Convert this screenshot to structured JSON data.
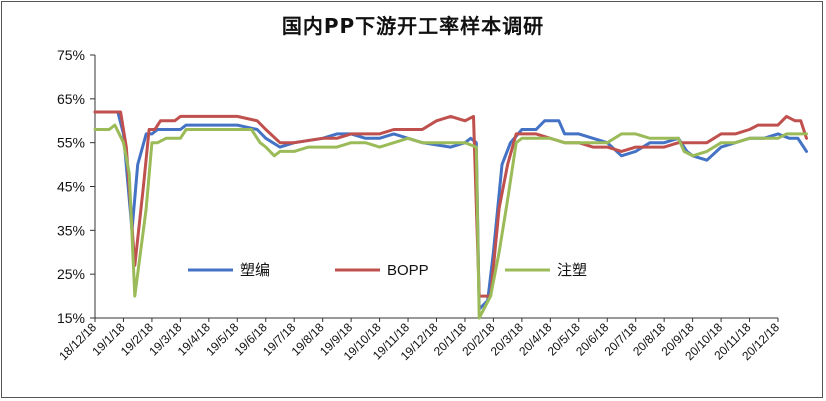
{
  "chart_data": {
    "type": "line",
    "title": "国内PP下游开工率样本调研",
    "ylim": [
      15,
      75
    ],
    "y_ticks": [
      "15%",
      "25%",
      "35%",
      "45%",
      "55%",
      "65%",
      "75%"
    ],
    "x_ticks": [
      "18/12/18",
      "19/1/18",
      "19/2/18",
      "19/3/18",
      "19/4/18",
      "19/5/18",
      "19/6/18",
      "19/7/18",
      "19/8/18",
      "19/9/18",
      "19/10/18",
      "19/11/18",
      "19/12/18",
      "20/1/18",
      "20/2/18",
      "20/3/18",
      "20/4/18",
      "20/5/18",
      "20/6/18",
      "20/7/18",
      "20/8/18",
      "20/9/18",
      "20/10/18",
      "20/11/18",
      "20/12/18"
    ],
    "grid": false,
    "legend_position": "bottom-center",
    "series": [
      {
        "name": "塑编",
        "color": "#4472C4",
        "points": [
          [
            0,
            62
          ],
          [
            0.8,
            62
          ],
          [
            1.0,
            57
          ],
          [
            1.3,
            35
          ],
          [
            1.5,
            50
          ],
          [
            1.8,
            57
          ],
          [
            2.0,
            57
          ],
          [
            2.2,
            58
          ],
          [
            3.0,
            58
          ],
          [
            3.2,
            59
          ],
          [
            5.0,
            59
          ],
          [
            5.7,
            58
          ],
          [
            6.0,
            56
          ],
          [
            6.5,
            54
          ],
          [
            7.0,
            55
          ],
          [
            8.0,
            56
          ],
          [
            8.5,
            57
          ],
          [
            9.0,
            57
          ],
          [
            9.5,
            56
          ],
          [
            10.0,
            56
          ],
          [
            10.5,
            57
          ],
          [
            11.0,
            56
          ],
          [
            11.5,
            55
          ],
          [
            12.5,
            54
          ],
          [
            13.0,
            55
          ],
          [
            13.2,
            56
          ],
          [
            13.4,
            55
          ],
          [
            13.5,
            17
          ],
          [
            13.8,
            19
          ],
          [
            14.0,
            30
          ],
          [
            14.3,
            50
          ],
          [
            14.6,
            55
          ],
          [
            15.0,
            58
          ],
          [
            15.5,
            58
          ],
          [
            15.8,
            60
          ],
          [
            16.3,
            60
          ],
          [
            16.5,
            57
          ],
          [
            17.0,
            57
          ],
          [
            17.5,
            56
          ],
          [
            18.0,
            55
          ],
          [
            18.5,
            52
          ],
          [
            19.0,
            53
          ],
          [
            19.5,
            55
          ],
          [
            20.0,
            55
          ],
          [
            20.5,
            56
          ],
          [
            20.8,
            53
          ],
          [
            21.0,
            52
          ],
          [
            21.5,
            51
          ],
          [
            22.0,
            54
          ],
          [
            22.5,
            55
          ],
          [
            23.0,
            56
          ],
          [
            23.5,
            56
          ],
          [
            24.0,
            57
          ],
          [
            24.4,
            56
          ],
          [
            24.7,
            56
          ],
          [
            25.0,
            53
          ]
        ]
      },
      {
        "name": "BOPP",
        "color": "#C0504D",
        "points": [
          [
            0,
            62
          ],
          [
            0.9,
            62
          ],
          [
            1.1,
            54
          ],
          [
            1.4,
            27
          ],
          [
            1.7,
            45
          ],
          [
            1.9,
            58
          ],
          [
            2.1,
            58
          ],
          [
            2.3,
            60
          ],
          [
            2.8,
            60
          ],
          [
            3.0,
            61
          ],
          [
            4.5,
            61
          ],
          [
            5.0,
            61
          ],
          [
            5.7,
            60
          ],
          [
            6.0,
            58
          ],
          [
            6.5,
            55
          ],
          [
            7.0,
            55
          ],
          [
            8.0,
            56
          ],
          [
            8.5,
            56
          ],
          [
            9.0,
            57
          ],
          [
            9.5,
            57
          ],
          [
            10.0,
            57
          ],
          [
            10.5,
            58
          ],
          [
            11.5,
            58
          ],
          [
            12.0,
            60
          ],
          [
            12.5,
            61
          ],
          [
            13.0,
            60
          ],
          [
            13.3,
            61
          ],
          [
            13.5,
            20
          ],
          [
            13.9,
            20
          ],
          [
            14.2,
            40
          ],
          [
            14.5,
            50
          ],
          [
            14.8,
            57
          ],
          [
            15.5,
            57
          ],
          [
            16.0,
            56
          ],
          [
            16.5,
            55
          ],
          [
            17.0,
            55
          ],
          [
            17.5,
            54
          ],
          [
            18.0,
            54
          ],
          [
            18.5,
            53
          ],
          [
            19.0,
            54
          ],
          [
            19.5,
            54
          ],
          [
            20.0,
            54
          ],
          [
            20.5,
            55
          ],
          [
            21.0,
            55
          ],
          [
            21.5,
            55
          ],
          [
            22.0,
            57
          ],
          [
            22.5,
            57
          ],
          [
            23.0,
            58
          ],
          [
            23.3,
            59
          ],
          [
            24.0,
            59
          ],
          [
            24.3,
            61
          ],
          [
            24.6,
            60
          ],
          [
            24.8,
            60
          ],
          [
            25.0,
            56
          ]
        ]
      },
      {
        "name": "注塑",
        "color": "#9BBB59",
        "points": [
          [
            0,
            58
          ],
          [
            0.5,
            58
          ],
          [
            0.7,
            59
          ],
          [
            1.0,
            55
          ],
          [
            1.2,
            48
          ],
          [
            1.4,
            20
          ],
          [
            1.8,
            40
          ],
          [
            2.0,
            55
          ],
          [
            2.2,
            55
          ],
          [
            2.5,
            56
          ],
          [
            3.0,
            56
          ],
          [
            3.2,
            58
          ],
          [
            5.0,
            58
          ],
          [
            5.5,
            58
          ],
          [
            5.8,
            55
          ],
          [
            6.0,
            54
          ],
          [
            6.3,
            52
          ],
          [
            6.5,
            53
          ],
          [
            7.0,
            53
          ],
          [
            7.5,
            54
          ],
          [
            8.0,
            54
          ],
          [
            8.5,
            54
          ],
          [
            9.0,
            55
          ],
          [
            9.5,
            55
          ],
          [
            10.0,
            54
          ],
          [
            10.5,
            55
          ],
          [
            11.0,
            56
          ],
          [
            11.5,
            55
          ],
          [
            12.0,
            55
          ],
          [
            12.5,
            55
          ],
          [
            13.0,
            55
          ],
          [
            13.4,
            54
          ],
          [
            13.5,
            15
          ],
          [
            13.9,
            20
          ],
          [
            14.2,
            30
          ],
          [
            14.5,
            42
          ],
          [
            14.8,
            55
          ],
          [
            15.0,
            56
          ],
          [
            15.5,
            56
          ],
          [
            16.0,
            56
          ],
          [
            16.5,
            55
          ],
          [
            17.0,
            55
          ],
          [
            17.5,
            55
          ],
          [
            18.0,
            55
          ],
          [
            18.5,
            57
          ],
          [
            19.0,
            57
          ],
          [
            19.5,
            56
          ],
          [
            20.0,
            56
          ],
          [
            20.5,
            56
          ],
          [
            20.7,
            53
          ],
          [
            21.0,
            52
          ],
          [
            21.5,
            53
          ],
          [
            22.0,
            55
          ],
          [
            22.5,
            55
          ],
          [
            23.0,
            56
          ],
          [
            24.0,
            56
          ],
          [
            24.3,
            57
          ],
          [
            25.0,
            57
          ]
        ]
      }
    ]
  }
}
